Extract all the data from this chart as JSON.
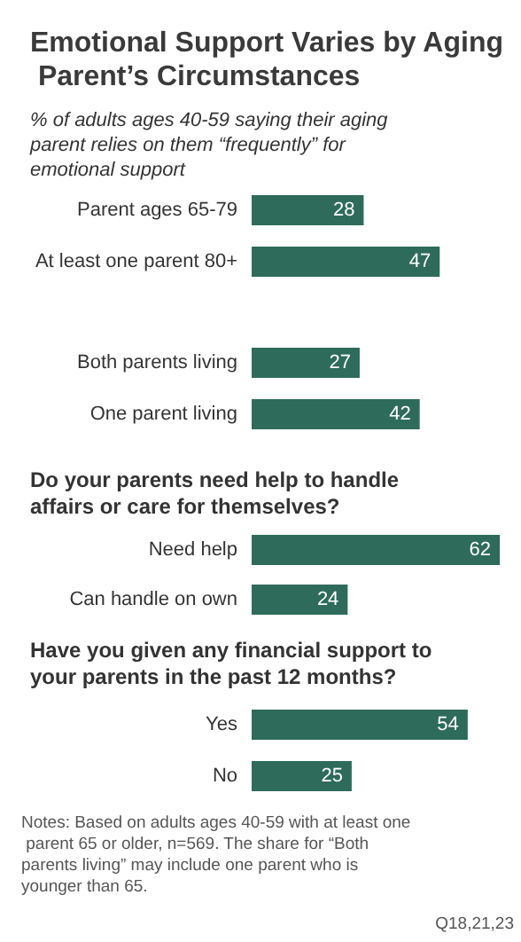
{
  "chart_data": [
    {
      "type": "bar",
      "orientation": "horizontal",
      "title": "Emotional Support Varies by Aging Parent’s Circumstances",
      "subtitle": "% of adults ages 40-59 saying their aging parent relies on them “frequently” for emotional support",
      "categories": [
        "Parent ages 65-79",
        "At least one parent 80+"
      ],
      "values": [
        28,
        47
      ],
      "color": "#2e6b5a",
      "data_labels": true
    },
    {
      "type": "bar",
      "orientation": "horizontal",
      "categories": [
        "Both parents living",
        "One parent living"
      ],
      "values": [
        27,
        42
      ],
      "color": "#2e6b5a",
      "data_labels": true
    },
    {
      "type": "bar",
      "orientation": "horizontal",
      "title": "Do your parents need help to handle affairs or care for themselves?",
      "categories": [
        "Need help",
        "Can handle on own"
      ],
      "values": [
        62,
        24
      ],
      "color": "#2e6b5a",
      "data_labels": true
    },
    {
      "type": "bar",
      "orientation": "horizontal",
      "title": "Have you given any financial support to your parents in the past 12 months?",
      "categories": [
        "Yes",
        "No"
      ],
      "values": [
        54,
        25
      ],
      "color": "#2e6b5a",
      "data_labels": true,
      "annotations": [
        "Notes: Based on adults ages 40-59 with at least one parent 65 or older, n=569. The share for “Both parents living” may include one parent who is younger than 65.",
        "Q18,21,23"
      ]
    }
  ]
}
